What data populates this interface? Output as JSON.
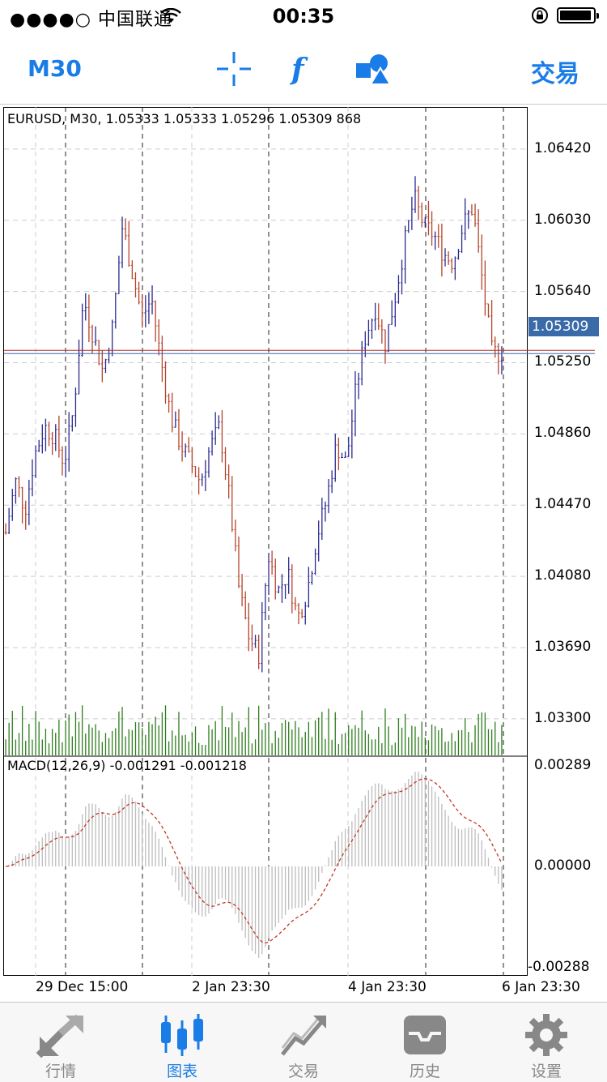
{
  "status_bar": {
    "carrier": "●●●●○ 中国联通",
    "time": "00:35"
  },
  "nav": {
    "timeframe": "M30",
    "trade_label": "交易"
  },
  "chart": {
    "info": "EURUSD, M30, 1.05333 1.05333 1.05296 1.05309 868",
    "macd_info": "MACD(12,26,9) -0.001291 -0.001218",
    "current_price": "1.05309",
    "price_axis": [
      "1.06420",
      "1.06030",
      "1.05640",
      "1.05250",
      "1.04860",
      "1.04470",
      "1.04080",
      "1.03690",
      "1.03300"
    ],
    "macd_axis": [
      "0.00289",
      "0.00000",
      "-0.00288"
    ],
    "time_axis": [
      "29 Dec 15:00",
      "2 Jan 23:30",
      "4 Jan 23:30",
      "6 Jan 23:30"
    ],
    "colors": {
      "bull": "#2b2b8f",
      "bear": "#b5452b",
      "volume": "#2e7d1e",
      "price_line": "#b03030",
      "current_label": "#3a6aa8",
      "accent": "#1a7ce6"
    }
  },
  "chart_data": {
    "type": "candlestick",
    "symbol": "EURUSD",
    "timeframe": "M30",
    "ylim": [
      1.031,
      1.0665
    ],
    "close_path": [
      1.0432,
      1.046,
      1.0445,
      1.0475,
      1.049,
      1.0485,
      1.047,
      1.05,
      1.056,
      1.054,
      1.052,
      1.0545,
      1.06,
      1.0575,
      1.055,
      1.056,
      1.0525,
      1.0495,
      1.048,
      1.047,
      1.046,
      1.0478,
      1.049,
      1.045,
      1.04,
      1.0375,
      1.0365,
      1.042,
      1.04,
      1.041,
      1.0385,
      1.04,
      1.043,
      1.045,
      1.048,
      1.047,
      1.051,
      1.054,
      1.0555,
      1.0535,
      1.056,
      1.059,
      1.0615,
      1.06,
      1.0595,
      1.0585,
      1.058,
      1.06,
      1.061,
      1.057,
      1.053,
      1.0531
    ],
    "volume_profile": "relative bar heights under price panel",
    "macd": {
      "min": -0.00288,
      "max": 0.00289,
      "current": -0.001291,
      "signal": -0.001218
    }
  },
  "tabs": [
    {
      "label": "行情",
      "icon": "quotes-arrows-icon"
    },
    {
      "label": "图表",
      "icon": "chart-candles-icon"
    },
    {
      "label": "交易",
      "icon": "trade-line-icon"
    },
    {
      "label": "历史",
      "icon": "history-tray-icon"
    },
    {
      "label": "设置",
      "icon": "settings-gear-icon"
    }
  ]
}
